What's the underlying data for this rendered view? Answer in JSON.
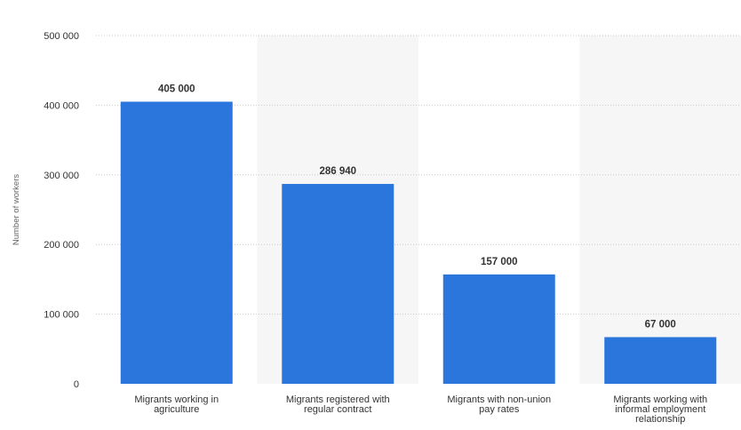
{
  "chart_data": {
    "type": "bar",
    "categories": [
      "Migrants working in agriculture",
      "Migrants registered with regular contract",
      "Migrants with non-union pay rates",
      "Migrants working with informal employment relationship"
    ],
    "category_lines": [
      [
        "Migrants working in",
        "agriculture"
      ],
      [
        "Migrants registered with",
        "regular contract"
      ],
      [
        "Migrants with non-union",
        "pay rates"
      ],
      [
        "Migrants working with",
        "informal employment",
        "relationship"
      ]
    ],
    "values": [
      405000,
      286940,
      157000,
      67000
    ],
    "value_labels": [
      "405 000",
      "286 940",
      "157 000",
      "67 000"
    ],
    "ylabel": "Number of workers",
    "ylim": [
      0,
      500000
    ],
    "yticks": [
      0,
      100000,
      200000,
      300000,
      400000,
      500000
    ],
    "ytick_labels": [
      "0",
      "100 000",
      "200 000",
      "300 000",
      "400 000",
      "500 000"
    ],
    "grid": true,
    "bar_color": "#2a76dd",
    "band_color": "#f6f6f6"
  }
}
